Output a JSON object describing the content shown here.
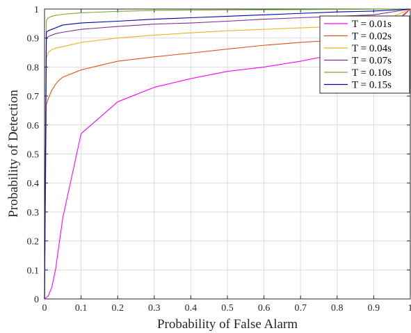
{
  "chart_data": {
    "type": "line",
    "title": "",
    "xlabel": "Probability of False Alarm",
    "ylabel": "Probability of Detection",
    "xlim": [
      0,
      1
    ],
    "ylim": [
      0,
      1
    ],
    "xticks": [
      "0",
      "0.1",
      "0.2",
      "0.3",
      "0.4",
      "0.5",
      "0.6",
      "0.7",
      "0.8",
      "0.9",
      "1"
    ],
    "yticks": [
      "0",
      "0.1",
      "0.2",
      "0.3",
      "0.4",
      "0.5",
      "0.6",
      "0.7",
      "0.8",
      "0.9",
      "1"
    ],
    "grid": true,
    "legend_position": "top-right",
    "series": [
      {
        "name": "T = 0.01s",
        "color": "#ff00ff",
        "x": [
          0,
          0.01,
          0.02,
          0.03,
          0.05,
          0.1,
          0.2,
          0.3,
          0.4,
          0.5,
          0.6,
          0.7,
          0.8,
          0.9,
          1.0
        ],
        "y": [
          0,
          0.01,
          0.04,
          0.1,
          0.28,
          0.57,
          0.68,
          0.73,
          0.76,
          0.785,
          0.8,
          0.82,
          0.845,
          0.88,
          1.0
        ]
      },
      {
        "name": "T = 0.02s",
        "color": "#d95319",
        "x": [
          0,
          0.005,
          0.01,
          0.02,
          0.03,
          0.04,
          0.05,
          0.1,
          0.2,
          0.3,
          0.4,
          0.5,
          0.6,
          0.7,
          0.8,
          0.9,
          1.0
        ],
        "y": [
          0,
          0.67,
          0.69,
          0.72,
          0.74,
          0.755,
          0.765,
          0.79,
          0.82,
          0.835,
          0.848,
          0.862,
          0.875,
          0.885,
          0.893,
          0.9,
          1.0
        ]
      },
      {
        "name": "T = 0.04s",
        "color": "#edb120",
        "x": [
          0,
          0.005,
          0.01,
          0.02,
          0.03,
          0.04,
          0.05,
          0.1,
          0.2,
          0.3,
          0.4,
          0.5,
          0.6,
          0.7,
          0.8,
          0.9,
          1.0
        ],
        "y": [
          0,
          0.83,
          0.85,
          0.86,
          0.865,
          0.868,
          0.87,
          0.885,
          0.9,
          0.91,
          0.918,
          0.925,
          0.93,
          0.935,
          0.94,
          0.945,
          1.0
        ]
      },
      {
        "name": "T = 0.07s",
        "color": "#7e2f8e",
        "x": [
          0,
          0.005,
          0.01,
          0.02,
          0.03,
          0.05,
          0.1,
          0.2,
          0.3,
          0.4,
          0.5,
          0.6,
          0.7,
          0.8,
          0.9,
          1.0
        ],
        "y": [
          0,
          0.895,
          0.905,
          0.91,
          0.915,
          0.92,
          0.93,
          0.94,
          0.948,
          0.952,
          0.958,
          0.965,
          0.97,
          0.975,
          0.98,
          1.0
        ]
      },
      {
        "name": "T = 0.10s",
        "color": "#77ac30",
        "x": [
          0,
          0.005,
          0.01,
          0.02,
          0.03,
          0.05,
          0.1,
          0.2,
          0.3,
          0.5,
          0.7,
          1.0
        ],
        "y": [
          0,
          0.96,
          0.97,
          0.975,
          0.978,
          0.982,
          0.987,
          0.992,
          0.995,
          0.997,
          0.998,
          1.0
        ]
      },
      {
        "name": "T = 0.15s",
        "color": "#0000a8",
        "x": [
          0,
          0.005,
          0.01,
          0.02,
          0.03,
          0.05,
          0.1,
          0.2,
          0.3,
          0.4,
          0.5,
          0.6,
          0.7,
          0.8,
          0.9,
          1.0
        ],
        "y": [
          0,
          0.92,
          0.925,
          0.93,
          0.935,
          0.945,
          0.952,
          0.958,
          0.965,
          0.97,
          0.975,
          0.98,
          0.985,
          0.99,
          0.993,
          1.0
        ]
      }
    ]
  }
}
